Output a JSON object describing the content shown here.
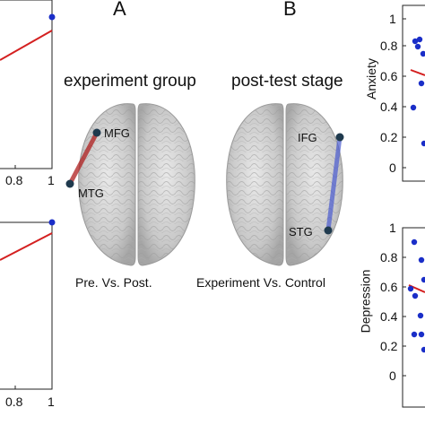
{
  "panel_a": {
    "letter": "A",
    "title": "experiment group",
    "caption": "Pre. Vs. Post.",
    "regions": [
      "MFG",
      "MTG"
    ],
    "connection_color": "#b02020"
  },
  "panel_b": {
    "letter": "B",
    "title": "post-test stage",
    "caption": "Experiment Vs. Control",
    "regions": [
      "IFG",
      "STG"
    ],
    "connection_color": "#4a5bd0"
  },
  "left_plots": {
    "top_xticks": [
      "0.8",
      "1"
    ],
    "bottom_xticks": [
      "0.8",
      "1"
    ],
    "fit_color": "#d42020",
    "point_color": "#1a2ec8"
  },
  "right_plots": {
    "top": {
      "ylabel": "Anxiety",
      "yticks": [
        "1",
        "0.8",
        "0.6",
        "0.4",
        "0.2",
        "0"
      ]
    },
    "bottom": {
      "ylabel": "Depression",
      "yticks": [
        "1",
        "0.8",
        "0.6",
        "0.4",
        "0.2",
        "0"
      ]
    }
  },
  "chart_data": [
    {
      "type": "scatter",
      "title": "",
      "xlabel": "",
      "ylabel": "",
      "x_ticks": [
        "0.8",
        "1"
      ],
      "series": [
        {
          "points": [
            [
              1.0,
              0.95
            ]
          ]
        }
      ],
      "fit_line": {
        "x": [
          0.63,
          1.0
        ],
        "y": [
          0.55,
          0.8
        ]
      }
    },
    {
      "type": "scatter",
      "title": "",
      "xlabel": "",
      "ylabel": "",
      "x_ticks": [
        "0.8",
        "1"
      ],
      "series": [
        {
          "points": [
            [
              1.0,
              0.9
            ]
          ]
        }
      ],
      "fit_line": {
        "x": [
          0.63,
          1.0
        ],
        "y": [
          0.5,
          0.77
        ]
      }
    },
    {
      "type": "scatter",
      "title": "",
      "xlabel": "",
      "ylabel": "Anxiety",
      "y_ticks": [
        "1",
        "0.8",
        "0.6",
        "0.4",
        "0.2",
        "0"
      ],
      "series": [
        {
          "points": [
            [
              0.1,
              0.82
            ],
            [
              0.2,
              0.84
            ],
            [
              0.15,
              0.78
            ],
            [
              0.3,
              0.72
            ],
            [
              0.1,
              0.4
            ],
            [
              0.25,
              0.6
            ],
            [
              0.15,
              0.17
            ]
          ]
        }
      ],
      "fit_line": {
        "x": [
          0.0,
          0.3
        ],
        "y": [
          0.68,
          0.62
        ]
      }
    },
    {
      "type": "scatter",
      "title": "",
      "xlabel": "",
      "ylabel": "Depression",
      "y_ticks": [
        "1",
        "0.8",
        "0.6",
        "0.4",
        "0.2",
        "0"
      ],
      "series": [
        {
          "points": [
            [
              0.1,
              0.92
            ],
            [
              0.2,
              0.8
            ],
            [
              0.3,
              0.65
            ],
            [
              0.05,
              0.57
            ],
            [
              0.1,
              0.52
            ],
            [
              0.25,
              0.45
            ],
            [
              0.05,
              0.28
            ],
            [
              0.15,
              0.28
            ],
            [
              0.3,
              0.2
            ]
          ]
        }
      ],
      "fit_line": {
        "x": [
          0.0,
          0.3
        ],
        "y": [
          0.6,
          0.56
        ]
      }
    }
  ]
}
